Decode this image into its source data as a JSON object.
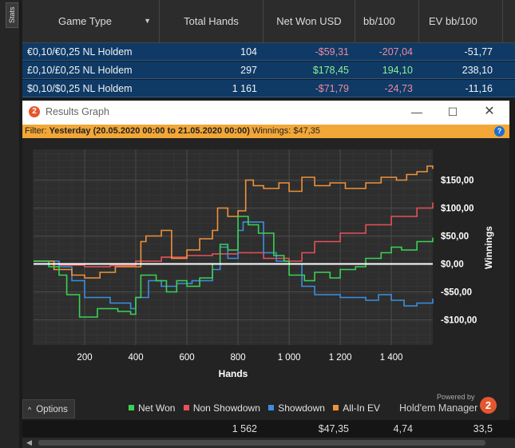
{
  "sidebar": {
    "tab_label": "Stats"
  },
  "table": {
    "columns": [
      "Game Type",
      "Total Hands",
      "Net Won USD",
      "bb/100",
      "EV bb/100"
    ],
    "rows": [
      {
        "game": "€0,10/€0,25 NL Holdem",
        "hands": "104",
        "net_won": "-$59,31",
        "bb100": "-207,04",
        "ev_bb100": "-51,77"
      },
      {
        "game": "£0,10/£0,25 NL Holdem",
        "hands": "297",
        "net_won": "$178,45",
        "bb100": "194,10",
        "ev_bb100": "238,10"
      },
      {
        "game": "$0,10/$0,25 NL Holdem",
        "hands": "1 161",
        "net_won": "-$71,79",
        "bb100": "-24,73",
        "ev_bb100": "-11,16"
      }
    ],
    "totals": {
      "hands": "1 562",
      "net_won": "$47,35",
      "bb100": "4,74",
      "ev_bb100": "33,5"
    }
  },
  "window": {
    "title": "Results Graph",
    "filter_label": "Filter:",
    "filter_value": "Yesterday (20.05.2020 00:00 to 21.05.2020 00:00)",
    "winnings_label": "Winnings: $47,35",
    "options_label": "Options",
    "powered_by": "Powered by",
    "brand": "Hold'em Manager"
  },
  "colors": {
    "net_won": "#39d353",
    "non_showdown": "#e8505b",
    "showdown": "#3b8fe0",
    "all_in_ev": "#f0923a",
    "row_bg": "#0f3a66",
    "filter_bar": "#f2a737"
  },
  "chart_data": {
    "type": "line",
    "xlabel": "Hands",
    "ylabel": "Winnings",
    "x_ticks": [
      200,
      400,
      600,
      800,
      1000,
      1200,
      1400
    ],
    "x_tick_labels": [
      "200",
      "400",
      "600",
      "800",
      "1 000",
      "1 200",
      "1 400"
    ],
    "y_ticks": [
      -100,
      -50,
      0,
      50,
      100,
      150
    ],
    "y_tick_labels": [
      "-$100,00",
      "-$50,00",
      "$0,00",
      "$50,00",
      "$100,00",
      "$150,00"
    ],
    "xlim": [
      0,
      1562
    ],
    "ylim": [
      -145,
      205
    ],
    "grid": true,
    "legend_position": "bottom",
    "series": [
      {
        "name": "Net Won",
        "color_key": "net_won",
        "x": [
          0,
          60,
          100,
          130,
          180,
          250,
          330,
          380,
          400,
          420,
          480,
          520,
          560,
          600,
          650,
          700,
          730,
          760,
          800,
          840,
          880,
          940,
          980,
          1000,
          1060,
          1100,
          1160,
          1200,
          1260,
          1300,
          1360,
          1400,
          1440,
          1500,
          1562
        ],
        "y": [
          5,
          -5,
          -20,
          -55,
          -95,
          -80,
          -85,
          -90,
          -60,
          -20,
          -30,
          -50,
          -30,
          -40,
          -25,
          0,
          35,
          25,
          85,
          70,
          55,
          15,
          5,
          -20,
          -30,
          -15,
          -25,
          -10,
          -5,
          10,
          20,
          30,
          25,
          40,
          47
        ]
      },
      {
        "name": "Non Showdown",
        "color_key": "non_showdown",
        "x": [
          0,
          100,
          200,
          300,
          400,
          500,
          600,
          700,
          800,
          900,
          1000,
          1050,
          1100,
          1200,
          1300,
          1400,
          1500,
          1562
        ],
        "y": [
          0,
          -2,
          -5,
          -3,
          5,
          12,
          15,
          18,
          20,
          10,
          5,
          20,
          40,
          55,
          70,
          85,
          100,
          110
        ]
      },
      {
        "name": "Showdown",
        "color_key": "showdown",
        "x": [
          0,
          100,
          150,
          200,
          300,
          380,
          400,
          450,
          500,
          560,
          620,
          700,
          730,
          760,
          800,
          820,
          850,
          900,
          950,
          1000,
          1050,
          1100,
          1200,
          1300,
          1350,
          1400,
          1450,
          1500,
          1562
        ],
        "y": [
          5,
          -5,
          -30,
          -60,
          -70,
          -80,
          -60,
          -30,
          -40,
          -35,
          -30,
          -10,
          30,
          10,
          60,
          75,
          75,
          20,
          5,
          0,
          -40,
          -55,
          -60,
          -65,
          -55,
          -65,
          -75,
          -70,
          -62
        ]
      },
      {
        "name": "All-In EV",
        "color_key": "all_in_ev",
        "x": [
          0,
          80,
          150,
          200,
          260,
          320,
          380,
          420,
          440,
          500,
          540,
          600,
          650,
          700,
          720,
          760,
          800,
          830,
          860,
          900,
          960,
          1000,
          1050,
          1100,
          1160,
          1220,
          1300,
          1360,
          1420,
          1460,
          1500,
          1540,
          1562
        ],
        "y": [
          5,
          -10,
          -20,
          -25,
          -15,
          -5,
          -5,
          40,
          50,
          60,
          10,
          25,
          45,
          60,
          100,
          85,
          95,
          150,
          140,
          135,
          145,
          130,
          155,
          140,
          145,
          135,
          145,
          155,
          150,
          160,
          165,
          175,
          170
        ]
      }
    ]
  }
}
